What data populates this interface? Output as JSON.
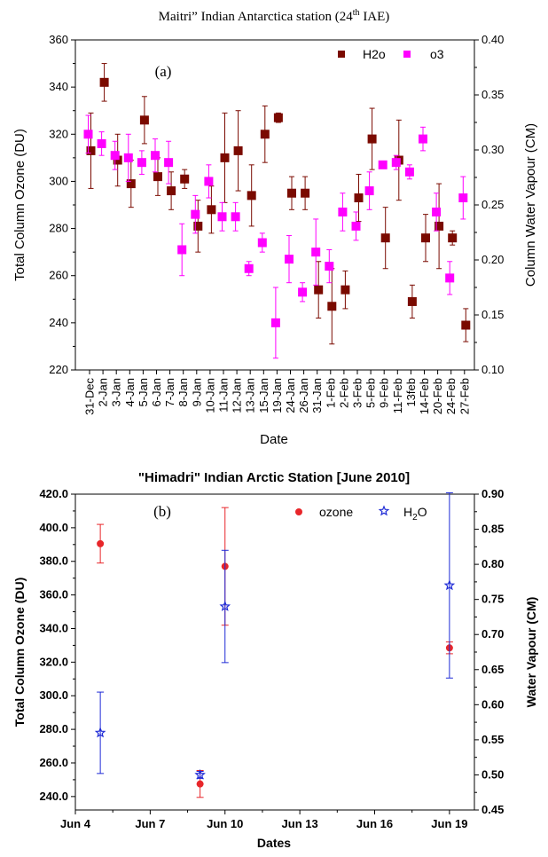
{
  "chart_data": [
    {
      "type": "scatter",
      "title": "Maitri” Indian Antarctica station (24th IAE)",
      "title_parts": {
        "main": "Maitri” Indian Antarctica station (24",
        "sup": "th",
        "tail": " IAE)"
      },
      "panel_label": "(a)",
      "xlabel": "Date",
      "ylabel": "Total Column Ozone (DU)",
      "y2label": "Column Water Vapour (CM)",
      "ylim": [
        220,
        360
      ],
      "y2lim": [
        0.1,
        0.4
      ],
      "yticks": [
        "220",
        "240",
        "260",
        "280",
        "300",
        "320",
        "340",
        "360"
      ],
      "y2ticks": [
        "0.10",
        "0.15",
        "0.20",
        "0.25",
        "0.30",
        "0.35",
        "0.40"
      ],
      "categories": [
        "31-Dec",
        "2-Jan",
        "3-Jan",
        "4-Jan",
        "5-Jan",
        "6-Jan",
        "7-Jan",
        "8-Jan",
        "9-Jan",
        "10-Jan",
        "11-Jan",
        "12-Jan",
        "13-Jan",
        "15-Jan",
        "19-Jan",
        "24-Jan",
        "26-Jan",
        "31-Jan",
        "1-Feb",
        "2-Feb",
        "3-Feb",
        "5-Feb",
        "9-Feb",
        "11-Feb",
        "13feb",
        "14-Feb",
        "20-Feb",
        "24-Feb",
        "27-Feb"
      ],
      "legend_position": "top-right",
      "series": [
        {
          "name": "H2o",
          "axis": "left",
          "color": "#7a0a00",
          "marker": "square",
          "values": [
            313,
            342,
            309,
            299,
            326,
            302,
            296,
            301,
            281,
            288,
            310,
            313,
            294,
            320,
            327,
            295,
            295,
            254,
            247,
            254,
            293,
            318,
            276,
            309,
            249,
            276,
            281,
            276,
            239
          ],
          "errors": [
            16,
            8,
            11,
            10,
            10,
            8,
            8,
            4,
            11,
            10,
            19,
            17,
            13,
            12,
            2,
            7,
            7,
            12,
            16,
            8,
            10,
            13,
            13,
            17,
            7,
            10,
            18,
            3,
            7
          ]
        },
        {
          "name": "o3",
          "axis": "left",
          "color": "#ff00ff",
          "marker": "square",
          "values": [
            320,
            316,
            311,
            310,
            308,
            311,
            308,
            271,
            286,
            300,
            285,
            285,
            263,
            274,
            240,
            267,
            253,
            270,
            264,
            287,
            281,
            296,
            307,
            308,
            304,
            318,
            287,
            259,
            293
          ],
          "errors": [
            8,
            5,
            6,
            10,
            5,
            7,
            9,
            11,
            8,
            7,
            6,
            6,
            3,
            4,
            15,
            10,
            4,
            14,
            7,
            8,
            6,
            8,
            1,
            3,
            3,
            5,
            8,
            7,
            9
          ]
        }
      ]
    },
    {
      "type": "scatter",
      "title": "\"Himadri\" Indian Arctic Station [June 2010]",
      "panel_label": "(b)",
      "xlabel": "Dates",
      "ylabel": "Total Column Ozone (DU)",
      "y2label": "Water Vapour (CM)",
      "ylim": [
        232,
        420
      ],
      "y2lim": [
        0.45,
        0.9
      ],
      "xlim": [
        4,
        20
      ],
      "xticks": [
        {
          "v": 4,
          "label": "Jun 4"
        },
        {
          "v": 7,
          "label": "Jun 7"
        },
        {
          "v": 10,
          "label": "Jun 10"
        },
        {
          "v": 13,
          "label": "Jun 13"
        },
        {
          "v": 16,
          "label": "Jun 16"
        },
        {
          "v": 19,
          "label": "Jun 19"
        }
      ],
      "yticks": [
        "240.0",
        "260.0",
        "280.0",
        "300.0",
        "320.0",
        "340.0",
        "360.0",
        "380.0",
        "400.0",
        "420.0"
      ],
      "y2ticks": [
        "0.45",
        "0.50",
        "0.55",
        "0.60",
        "0.65",
        "0.70",
        "0.75",
        "0.80",
        "0.85",
        "0.90"
      ],
      "legend_position": "top-right",
      "series": [
        {
          "name": "ozone",
          "axis": "left",
          "color": "#e8262a",
          "marker": "circle",
          "x": [
            5,
            9,
            10,
            19
          ],
          "values": [
            390.5,
            247.5,
            377.0,
            328.5
          ],
          "errors": [
            11.5,
            8.0,
            35.0,
            3.5
          ]
        },
        {
          "name": "H2O",
          "name_parts": {
            "main": "H",
            "sub": "2",
            "tail": "O"
          },
          "axis": "right",
          "color": "#1f2bd6",
          "marker": "star",
          "x": [
            5,
            9,
            10,
            19
          ],
          "values": [
            0.56,
            0.5,
            0.74,
            0.77
          ],
          "errors": [
            0.058,
            0.005,
            0.08,
            0.132
          ]
        }
      ]
    }
  ]
}
